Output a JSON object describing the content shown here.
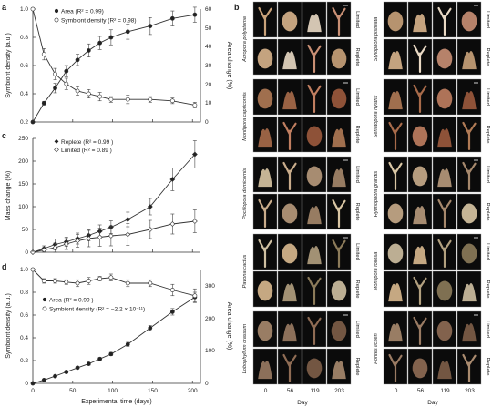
{
  "colors": {
    "axis": "#333333",
    "tile_bg": "#0b0b0b"
  },
  "panels": {
    "a": "a",
    "b": "b",
    "c": "c",
    "d": "d"
  },
  "chart_data": [
    {
      "type": "line",
      "id": "a",
      "xlim": [
        0,
        210
      ],
      "ylim": [
        0.2,
        1.0
      ],
      "y2lim": [
        0,
        60
      ],
      "ylabel": "Symbiont density (a.u.)",
      "y2label": "Area change (%)",
      "yticks": [
        "0.2",
        "0.4",
        "0.6",
        "0.8",
        "1.0"
      ],
      "y2ticks": [
        "0",
        "10",
        "20",
        "30",
        "40",
        "50",
        "60"
      ],
      "legend": [
        "Area (R² = 0.99)",
        "Symbiont density (R² = 0.98)"
      ],
      "series": [
        {
          "marker": "filled",
          "axis": "right",
          "x": [
            0,
            14,
            28,
            42,
            56,
            70,
            84,
            98,
            119,
            147,
            175,
            203
          ],
          "y": [
            0,
            10,
            18,
            27,
            33,
            38,
            42,
            45,
            48,
            51,
            55,
            57
          ],
          "err": [
            0,
            1,
            2.5,
            3,
            3,
            3.5,
            3.5,
            4,
            4,
            4.5,
            4,
            4
          ]
        },
        {
          "marker": "open",
          "axis": "left",
          "x": [
            0,
            14,
            28,
            42,
            56,
            70,
            84,
            98,
            119,
            147,
            175,
            203
          ],
          "y": [
            1.0,
            0.68,
            0.54,
            0.47,
            0.42,
            0.4,
            0.38,
            0.36,
            0.36,
            0.36,
            0.35,
            0.32
          ],
          "err": [
            0,
            0.04,
            0.04,
            0.04,
            0.03,
            0.03,
            0.03,
            0.02,
            0.03,
            0.02,
            0.02,
            0.02
          ]
        }
      ]
    },
    {
      "type": "line",
      "id": "c",
      "xlim": [
        0,
        210
      ],
      "ylim": [
        0,
        250
      ],
      "ylabel": "Mass change (%)",
      "yticks": [
        "0",
        "50",
        "100",
        "150",
        "200",
        "250"
      ],
      "legend": [
        "Replete (R² = 0.99 )",
        "Limited (R² = 0.89 )"
      ],
      "series": [
        {
          "name": "Replete",
          "marker": "filled",
          "x": [
            0,
            14,
            28,
            42,
            56,
            70,
            84,
            98,
            119,
            147,
            175,
            203
          ],
          "y": [
            0,
            8,
            17,
            23,
            30,
            37,
            46,
            55,
            72,
            100,
            160,
            215
          ],
          "err": [
            0,
            6,
            12,
            10,
            12,
            12,
            14,
            14,
            16,
            18,
            25,
            30
          ]
        },
        {
          "name": "Limited",
          "marker": "open",
          "x": [
            0,
            14,
            28,
            42,
            56,
            70,
            84,
            98,
            119,
            147,
            175,
            203
          ],
          "y": [
            0,
            5,
            10,
            18,
            25,
            30,
            33,
            36,
            39,
            50,
            62,
            68
          ],
          "err": [
            0,
            5,
            10,
            12,
            14,
            18,
            20,
            22,
            24,
            20,
            22,
            25
          ]
        }
      ]
    },
    {
      "type": "line",
      "id": "d",
      "xlim": [
        0,
        210
      ],
      "ylim": [
        0,
        1.0
      ],
      "y2lim": [
        0,
        350
      ],
      "xlabel": "Experimental time (days)",
      "ylabel": "Symbiont density (a.u.)",
      "y2label": "Area change (%)",
      "xticks": [
        "0",
        "50",
        "100",
        "150",
        "200"
      ],
      "yticks": [
        "0",
        "0.2",
        "0.4",
        "0.6",
        "0.8",
        "1.0"
      ],
      "y2ticks": [
        "0",
        "100",
        "200",
        "300"
      ],
      "legend": [
        "Area (R² = 0.99 )",
        "Symbiont density (R² = −2.2 × 10⁻¹¹)"
      ],
      "series": [
        {
          "marker": "filled",
          "axis": "right",
          "x": [
            0,
            14,
            28,
            42,
            56,
            70,
            84,
            98,
            119,
            147,
            175,
            203
          ],
          "y": [
            0,
            10,
            22,
            35,
            48,
            60,
            75,
            90,
            120,
            170,
            220,
            265
          ],
          "err": [
            0,
            1,
            2,
            3,
            3,
            4,
            4,
            5,
            6,
            8,
            10,
            15
          ]
        },
        {
          "marker": "open",
          "axis": "left",
          "x": [
            0,
            14,
            28,
            42,
            56,
            70,
            84,
            98,
            119,
            147,
            175,
            203
          ],
          "y": [
            1.0,
            0.9,
            0.9,
            0.89,
            0.88,
            0.9,
            0.92,
            0.93,
            0.88,
            0.88,
            0.82,
            0.77
          ],
          "err": [
            0,
            0.02,
            0.02,
            0.02,
            0.03,
            0.03,
            0.02,
            0.03,
            0.03,
            0.03,
            0.05,
            0.06
          ]
        }
      ]
    }
  ],
  "photo_grid": {
    "days": [
      "0",
      "56",
      "119",
      "203"
    ],
    "xlabel": "Day",
    "conditions": [
      "Limited",
      "Replete"
    ],
    "left_species": [
      "Acropora polystoma",
      "Montipora capricornis",
      "Pocillopora damicornis",
      "Pavona cactus",
      "Lobophyllum crassum"
    ],
    "right_species": [
      "Stylophora pistillata",
      "Seriatopora hystrix",
      "Hydnophora grandis",
      "Montipora foliosa",
      "Porites lichen"
    ]
  }
}
